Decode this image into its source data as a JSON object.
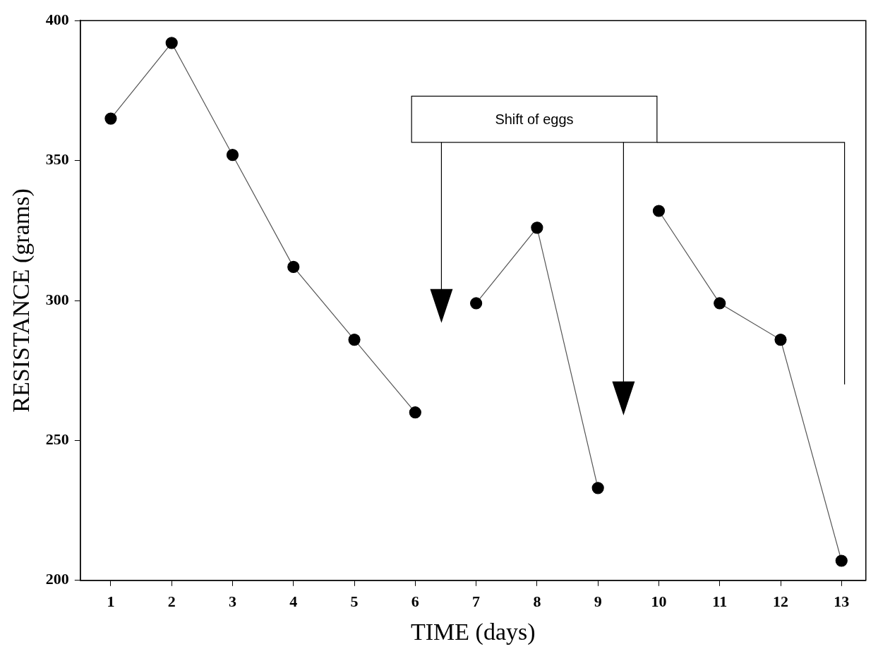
{
  "chart_data": {
    "type": "line",
    "xlabel": "TIME (days)",
    "ylabel": "RESISTANCE (grams)",
    "annotations": [
      "Shift of eggs"
    ],
    "xlim": [
      0.5,
      13.4
    ],
    "xticks": [
      1,
      2,
      3,
      4,
      5,
      6,
      7,
      8,
      9,
      10,
      11,
      12,
      13
    ],
    "ylim": [
      200,
      400
    ],
    "yticks": [
      200,
      250,
      300,
      350,
      400
    ],
    "grid": false,
    "legend": false,
    "marker": "circle",
    "series": [
      {
        "color": "#000000",
        "x": [
          1,
          2,
          3,
          4,
          5,
          6
        ],
        "values": [
          365,
          392,
          352,
          312,
          286,
          260
        ]
      },
      {
        "color": "#000000",
        "x": [
          7,
          8,
          9
        ],
        "values": [
          299,
          326,
          233
        ]
      },
      {
        "color": "#000000",
        "x": [
          10,
          11,
          12,
          13
        ],
        "values": [
          332,
          299,
          286,
          207
        ]
      }
    ]
  }
}
